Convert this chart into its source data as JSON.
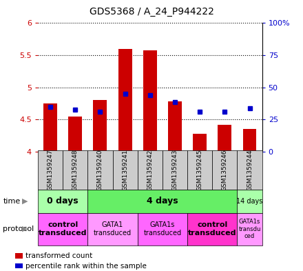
{
  "title": "GDS5368 / A_24_P944222",
  "samples": [
    "GSM1359247",
    "GSM1359248",
    "GSM1359240",
    "GSM1359241",
    "GSM1359242",
    "GSM1359243",
    "GSM1359245",
    "GSM1359246",
    "GSM1359244"
  ],
  "bar_values": [
    4.75,
    4.55,
    4.8,
    5.6,
    5.58,
    4.78,
    4.28,
    4.42,
    4.35
  ],
  "bar_base": 4.0,
  "blue_values": [
    4.7,
    4.65,
    4.62,
    4.9,
    4.88,
    4.77,
    4.62,
    4.62,
    4.68
  ],
  "ylim": [
    4.0,
    6.0
  ],
  "y2lim": [
    0,
    100
  ],
  "yticks": [
    4.0,
    4.5,
    5.0,
    5.5,
    6.0
  ],
  "ytick_labels": [
    "4",
    "4.5",
    "5",
    "5.5",
    "6"
  ],
  "y2ticks": [
    0,
    25,
    50,
    75,
    100
  ],
  "y2tick_labels": [
    "0",
    "25",
    "50",
    "75",
    "100%"
  ],
  "bar_color": "#cc0000",
  "blue_color": "#0000cc",
  "time_groups": [
    {
      "label": "0 days",
      "start": 0,
      "end": 2,
      "color": "#aaffaa",
      "fontsize": 9,
      "bold": true
    },
    {
      "label": "4 days",
      "start": 2,
      "end": 8,
      "color": "#66ee66",
      "fontsize": 9,
      "bold": true
    },
    {
      "label": "14 days",
      "start": 8,
      "end": 9,
      "color": "#aaffaa",
      "fontsize": 7,
      "bold": false
    }
  ],
  "protocol_groups": [
    {
      "label": "control\ntransduced",
      "start": 0,
      "end": 2,
      "color": "#ff66ff",
      "bold": true,
      "fontsize": 8
    },
    {
      "label": "GATA1\ntransduced",
      "start": 2,
      "end": 4,
      "color": "#ff99ff",
      "bold": false,
      "fontsize": 7
    },
    {
      "label": "GATA1s\ntransduced",
      "start": 4,
      "end": 6,
      "color": "#ff66ff",
      "bold": false,
      "fontsize": 7
    },
    {
      "label": "control\ntransduced",
      "start": 6,
      "end": 8,
      "color": "#ff33cc",
      "bold": true,
      "fontsize": 8
    },
    {
      "label": "GATA1s\ntransdu\nced",
      "start": 8,
      "end": 9,
      "color": "#ff99ff",
      "bold": false,
      "fontsize": 6
    }
  ],
  "sample_box_color": "#cccccc",
  "bg_color": "#ffffff",
  "legend_items": [
    {
      "color": "#cc0000",
      "label": "transformed count"
    },
    {
      "color": "#0000cc",
      "label": "percentile rank within the sample"
    }
  ]
}
